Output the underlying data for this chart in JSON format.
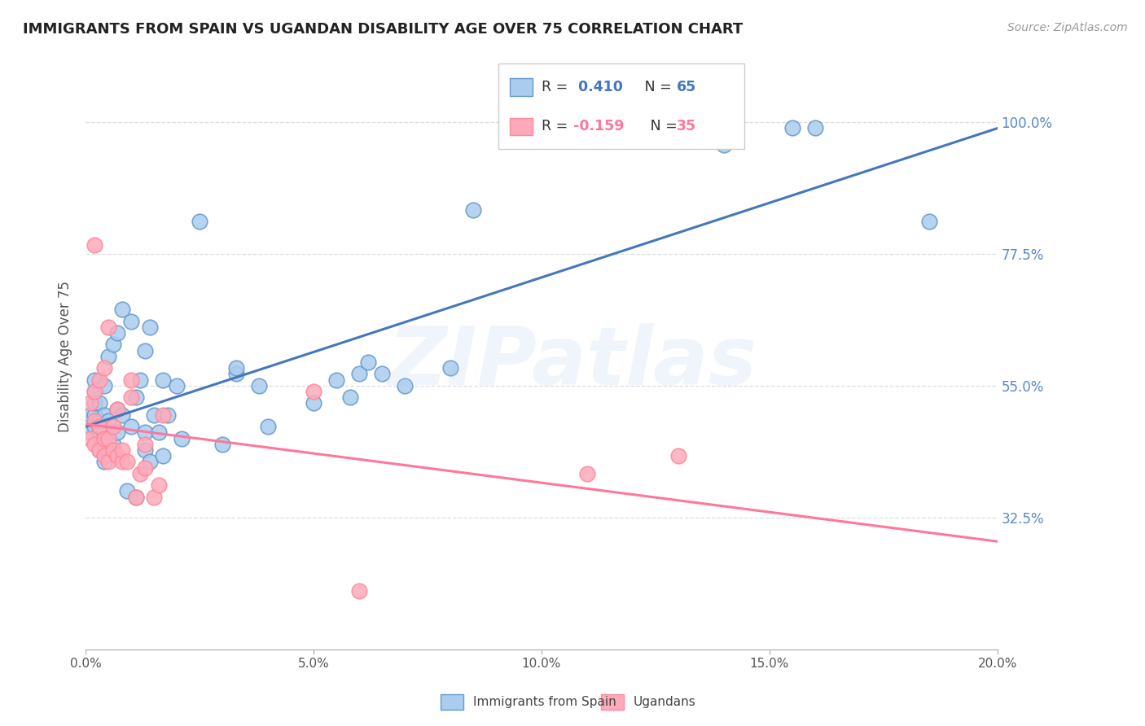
{
  "title": "IMMIGRANTS FROM SPAIN VS UGANDAN DISABILITY AGE OVER 75 CORRELATION CHART",
  "source": "Source: ZipAtlas.com",
  "ylabel": "Disability Age Over 75",
  "legend_label_blue": "Immigrants from Spain",
  "legend_label_pink": "Ugandans",
  "blue_R": "0.410",
  "blue_N": "65",
  "pink_R": "-0.159",
  "pink_N": "35",
  "blue_color": "#AACCEE",
  "pink_color": "#FFAABB",
  "blue_edge_color": "#6699CC",
  "pink_edge_color": "#FF8899",
  "blue_line_color": "#4477BB",
  "pink_line_color": "#FF7799",
  "xlim": [
    0.0,
    0.2
  ],
  "ylim": [
    0.1,
    1.1
  ],
  "ytick_vals": [
    0.325,
    0.55,
    0.775,
    1.0
  ],
  "ytick_labels": [
    "32.5%",
    "55.0%",
    "77.5%",
    "100.0%"
  ],
  "xtick_vals": [
    0.0,
    0.05,
    0.1,
    0.15,
    0.2
  ],
  "xtick_labels": [
    "0.0%",
    "5.0%",
    "10.0%",
    "15.0%",
    "20.0%"
  ],
  "blue_points_x": [
    0.001,
    0.001,
    0.002,
    0.002,
    0.002,
    0.002,
    0.002,
    0.003,
    0.003,
    0.003,
    0.003,
    0.003,
    0.004,
    0.004,
    0.004,
    0.004,
    0.004,
    0.005,
    0.005,
    0.005,
    0.005,
    0.006,
    0.006,
    0.007,
    0.007,
    0.007,
    0.008,
    0.008,
    0.009,
    0.01,
    0.01,
    0.011,
    0.011,
    0.012,
    0.013,
    0.013,
    0.013,
    0.014,
    0.014,
    0.015,
    0.016,
    0.017,
    0.017,
    0.018,
    0.02,
    0.021,
    0.025,
    0.03,
    0.033,
    0.033,
    0.038,
    0.04,
    0.05,
    0.055,
    0.058,
    0.06,
    0.062,
    0.065,
    0.07,
    0.08,
    0.085,
    0.14,
    0.155,
    0.16,
    0.185
  ],
  "blue_points_y": [
    0.47,
    0.5,
    0.48,
    0.5,
    0.52,
    0.54,
    0.56,
    0.44,
    0.46,
    0.47,
    0.49,
    0.52,
    0.42,
    0.45,
    0.47,
    0.5,
    0.55,
    0.44,
    0.46,
    0.49,
    0.6,
    0.45,
    0.62,
    0.47,
    0.51,
    0.64,
    0.5,
    0.68,
    0.37,
    0.48,
    0.66,
    0.36,
    0.53,
    0.56,
    0.44,
    0.47,
    0.61,
    0.42,
    0.65,
    0.5,
    0.47,
    0.43,
    0.56,
    0.5,
    0.55,
    0.46,
    0.83,
    0.45,
    0.57,
    0.58,
    0.55,
    0.48,
    0.52,
    0.56,
    0.53,
    0.57,
    0.59,
    0.57,
    0.55,
    0.58,
    0.85,
    0.96,
    0.99,
    0.99,
    0.83
  ],
  "pink_points_x": [
    0.001,
    0.001,
    0.002,
    0.002,
    0.002,
    0.002,
    0.003,
    0.003,
    0.003,
    0.004,
    0.004,
    0.004,
    0.005,
    0.005,
    0.005,
    0.006,
    0.006,
    0.007,
    0.007,
    0.008,
    0.008,
    0.009,
    0.01,
    0.01,
    0.011,
    0.012,
    0.013,
    0.013,
    0.015,
    0.016,
    0.017,
    0.05,
    0.06,
    0.11,
    0.13
  ],
  "pink_points_y": [
    0.46,
    0.52,
    0.45,
    0.49,
    0.54,
    0.79,
    0.44,
    0.48,
    0.56,
    0.43,
    0.46,
    0.58,
    0.42,
    0.46,
    0.65,
    0.44,
    0.48,
    0.43,
    0.51,
    0.42,
    0.44,
    0.42,
    0.53,
    0.56,
    0.36,
    0.4,
    0.41,
    0.45,
    0.36,
    0.38,
    0.5,
    0.54,
    0.2,
    0.4,
    0.43
  ],
  "background_color": "#FFFFFF",
  "grid_color": "#DDDDDD",
  "watermark": "ZIPatlas"
}
